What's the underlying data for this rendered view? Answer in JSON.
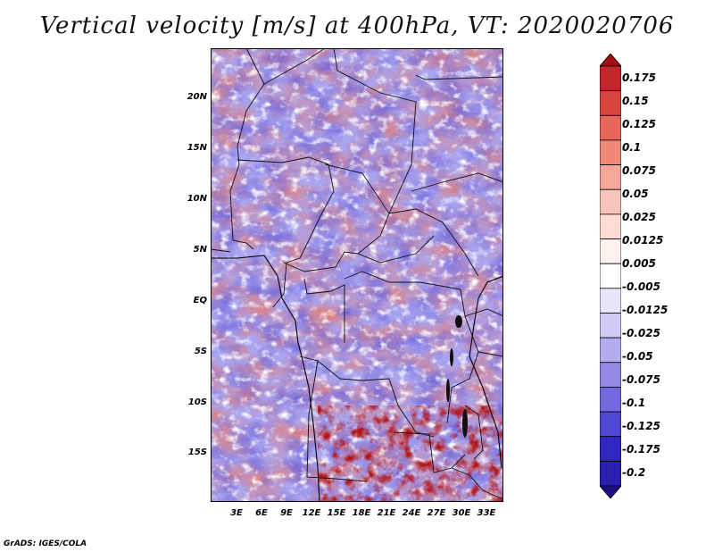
{
  "title": "Vertical velocity [m/s] at 400hPa, VT: 2020020706",
  "lat_labels": [
    "20N",
    "15N",
    "10N",
    "5N",
    "EQ",
    "5S",
    "10S",
    "15S"
  ],
  "lon_labels": [
    "3E",
    "6E",
    "9E",
    "12E",
    "15E",
    "18E",
    "21E",
    "24E",
    "27E",
    "30E",
    "33E"
  ],
  "colorbar": {
    "labels": [
      "0.175",
      "0.15",
      "0.125",
      "0.1",
      "0.075",
      "0.05",
      "0.025",
      "0.0125",
      "0.005",
      "-0.005",
      "-0.0125",
      "-0.025",
      "-0.05",
      "-0.075",
      "-0.1",
      "-0.125",
      "-0.175",
      "-0.2"
    ],
    "colors": [
      "#a40f16",
      "#c1272a",
      "#d8453f",
      "#e8655a",
      "#f08878",
      "#f5a79a",
      "#f9c5bb",
      "#fcdcd5",
      "#fef0ec",
      "#ffffff",
      "#e8e6fb",
      "#cfcaf5",
      "#b3acee",
      "#9489e6",
      "#736ae0",
      "#4f48d4",
      "#3026c0",
      "#2a1fae",
      "#1c0c8a"
    ]
  },
  "credit": "GrADS: IGES/COLA"
}
